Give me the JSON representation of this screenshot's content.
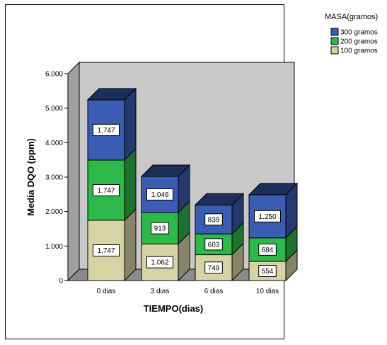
{
  "chart_data": {
    "type": "bar",
    "stacked": true,
    "three_d": true,
    "categories": [
      "0 dias",
      "3 dias",
      "6 dias",
      "10 dias"
    ],
    "series": [
      {
        "name": "100 gramos",
        "values": [
          1747,
          1062,
          749,
          554
        ],
        "labels": [
          "1.747",
          "1.062",
          "749",
          "554"
        ],
        "color": "#d8d3a4"
      },
      {
        "name": "200 gramos",
        "values": [
          1747,
          913,
          603,
          684
        ],
        "labels": [
          "1.747",
          "913",
          "603",
          "684"
        ],
        "color": "#2db84a"
      },
      {
        "name": "300 gramos",
        "values": [
          1747,
          1046,
          839,
          1250
        ],
        "labels": [
          "1.747",
          "1.046",
          "839",
          "1.250"
        ],
        "color": "#3b5cb3"
      }
    ],
    "ylim": [
      0,
      6000
    ],
    "yticks": [
      0,
      1000,
      2000,
      3000,
      4000,
      5000,
      6000
    ],
    "ytick_labels": [
      "0",
      "1.000",
      "2.000",
      "3.000",
      "4.000",
      "5.000",
      "6.000"
    ],
    "xlabel": "TIEMPO(dias)",
    "ylabel": "Media DQO (ppm)",
    "legend_title": "MASA(gramos)",
    "legend_order": [
      "300 gramos",
      "200 gramos",
      "100 gramos"
    ],
    "legend_position": "top-right",
    "grid": false,
    "back_wall_color": "#c8c8c8",
    "side_wall_color": "#a0a0a0",
    "floor_color": "#8c8c8c"
  }
}
